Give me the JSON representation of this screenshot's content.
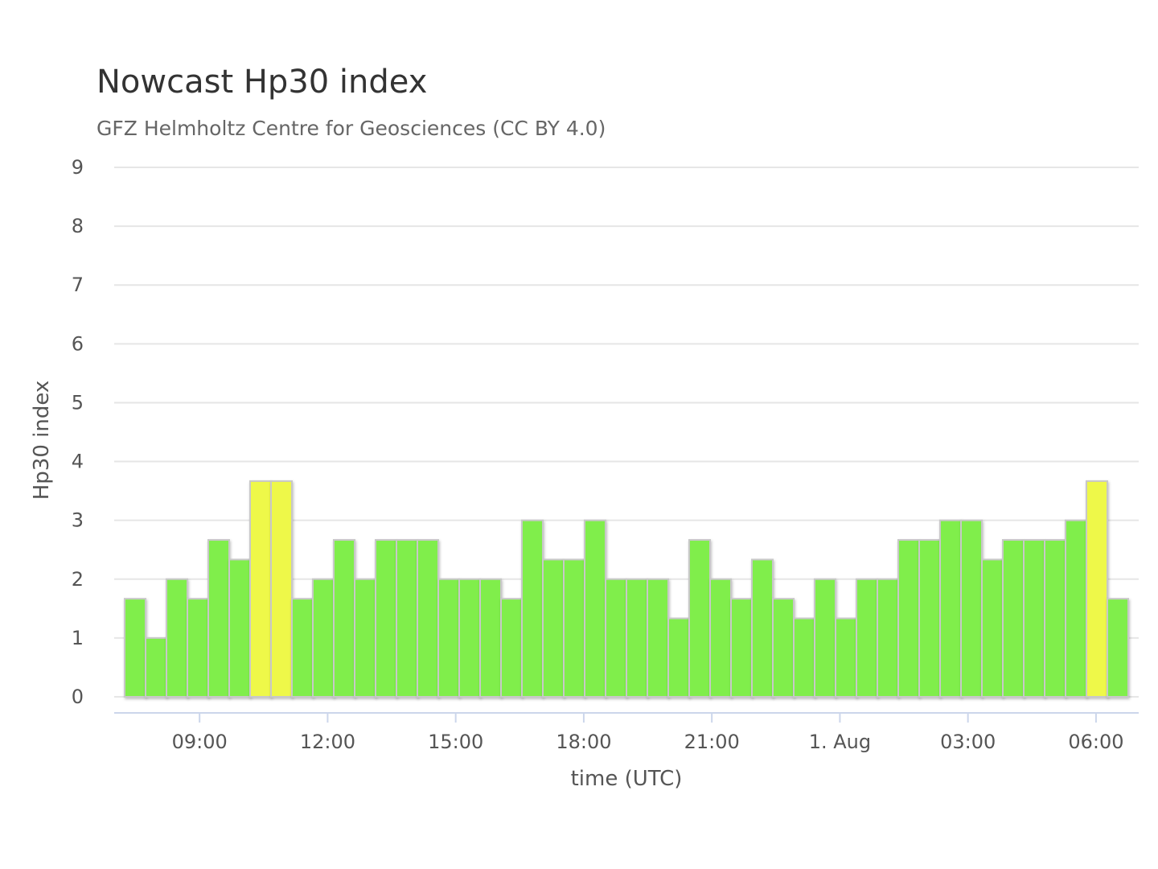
{
  "chart_data": {
    "type": "bar",
    "title": "Nowcast Hp30 index",
    "subtitle": "GFZ Helmholtz Centre for Geosciences (CC BY 4.0)",
    "xlabel": "time (UTC)",
    "ylabel": "Hp30 index",
    "ylim": [
      0,
      9
    ],
    "yticks": [
      0,
      1,
      2,
      3,
      4,
      5,
      6,
      7,
      8,
      9
    ],
    "grid": true,
    "x_start": "31 Jul 07:00",
    "x_end": "1 Aug 07:00",
    "interval_minutes": 30,
    "xticks": [
      {
        "label": "09:00",
        "time": "31 Jul 09:00"
      },
      {
        "label": "12:00",
        "time": "31 Jul 12:00"
      },
      {
        "label": "15:00",
        "time": "31 Jul 15:00"
      },
      {
        "label": "18:00",
        "time": "31 Jul 18:00"
      },
      {
        "label": "21:00",
        "time": "31 Jul 21:00"
      },
      {
        "label": "1. Aug",
        "time": "1 Aug 00:00"
      },
      {
        "label": "03:00",
        "time": "1 Aug 03:00"
      },
      {
        "label": "06:00",
        "time": "1 Aug 06:00"
      }
    ],
    "colors": {
      "normal": "#80ee4c",
      "elevated": "#eef84a",
      "border": "#c8c8c8"
    },
    "elevated_threshold": 3.5,
    "values": [
      1.667,
      1,
      2,
      1.667,
      2.667,
      2.333,
      3.667,
      3.667,
      1.667,
      2,
      2.667,
      2,
      2.667,
      2.667,
      2.667,
      2,
      2,
      2,
      1.667,
      3,
      2.333,
      2.333,
      3,
      2,
      2,
      2,
      1.333,
      2.667,
      2,
      1.667,
      2.333,
      1.667,
      1.333,
      2,
      1.333,
      2,
      2,
      2.667,
      2.667,
      3,
      3,
      2.333,
      2.667,
      2.667,
      2.667,
      3,
      3.667,
      1.667
    ]
  }
}
